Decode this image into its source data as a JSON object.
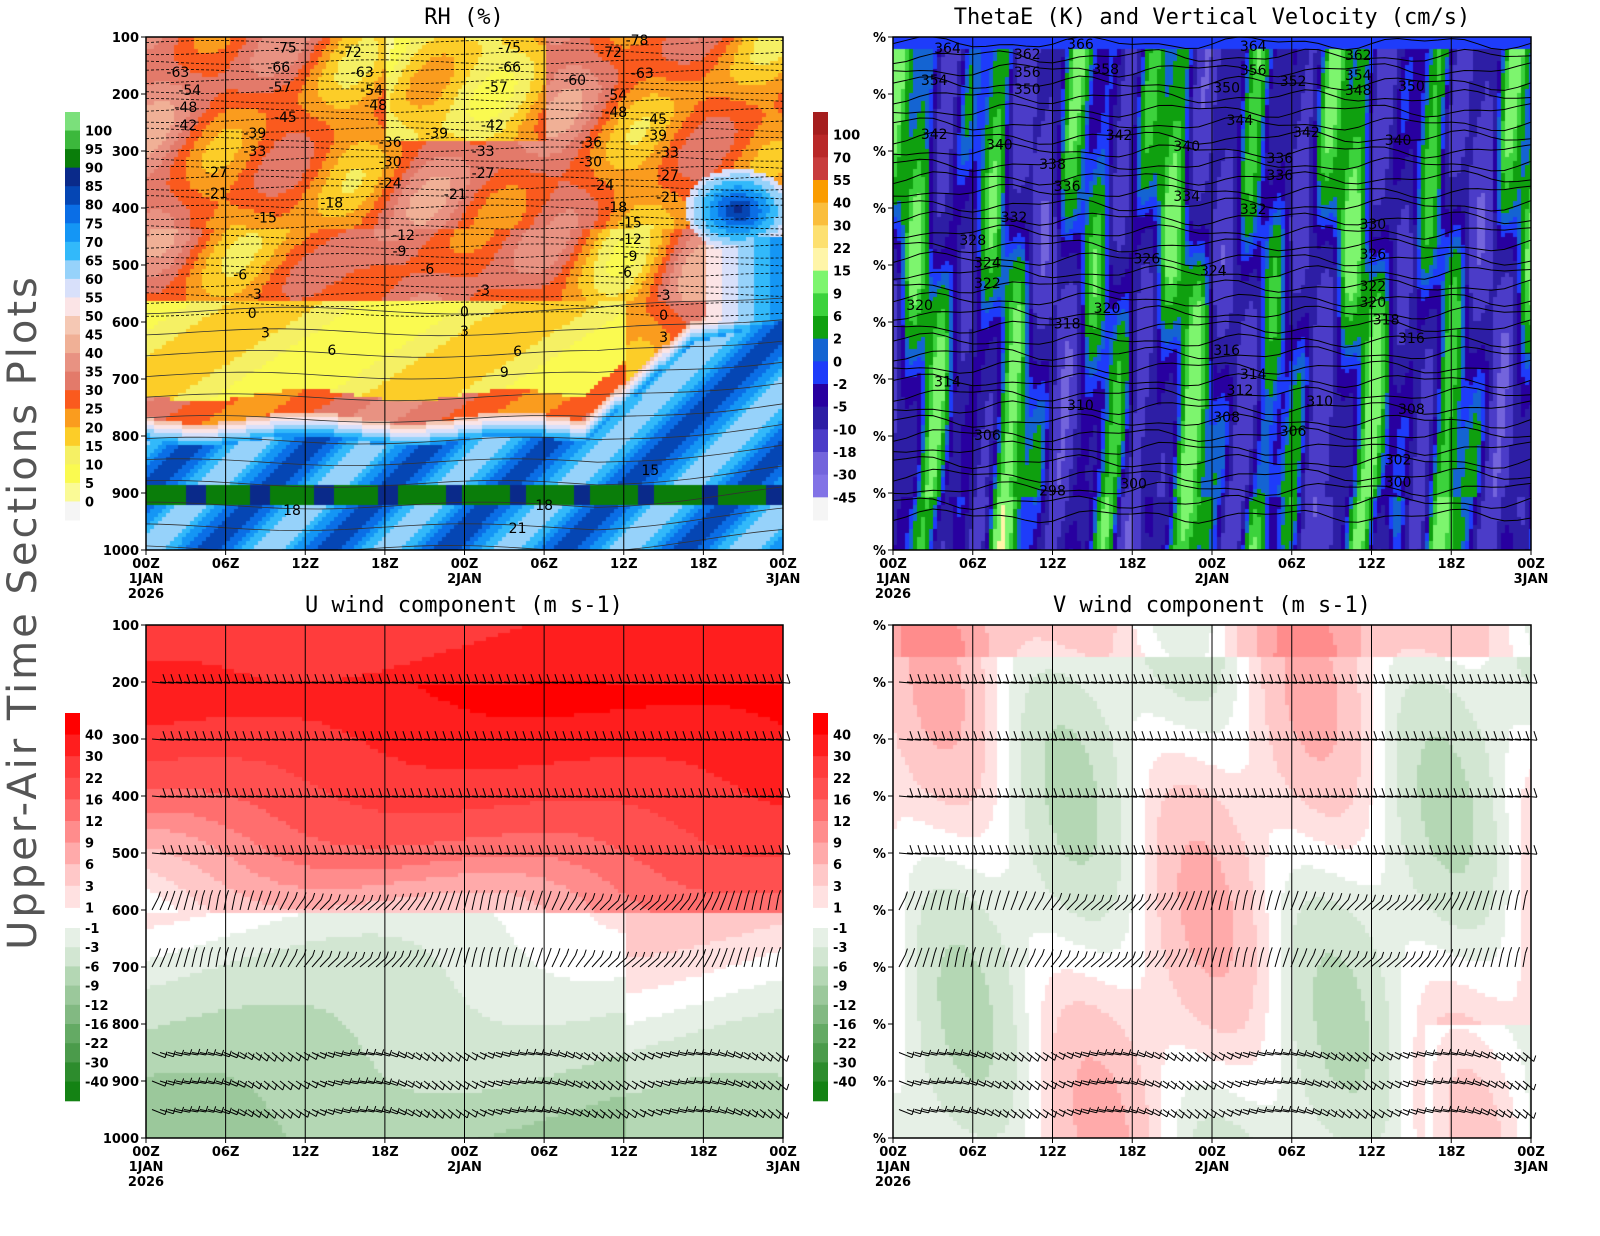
{
  "side_title": "Upper-Air Time Sections Plots",
  "x_ticks": [
    "00Z",
    "06Z",
    "12Z",
    "18Z",
    "00Z",
    "06Z",
    "12Z",
    "18Z",
    "00Z"
  ],
  "x_date_labels": [
    {
      "tick": 0,
      "lines": [
        "1JAN",
        "2026"
      ]
    },
    {
      "tick": 4,
      "lines": [
        "2JAN"
      ]
    },
    {
      "tick": 8,
      "lines": [
        "3JAN"
      ]
    }
  ],
  "chart_data": [
    {
      "id": "rh",
      "type": "heatmap",
      "title": "RH (%)",
      "x_range_hours": [
        0,
        48
      ],
      "y_range_hPa": [
        100,
        1000
      ],
      "y_ticks": [
        "100",
        "200",
        "300",
        "400",
        "500",
        "600",
        "700",
        "800",
        "900",
        "1000"
      ],
      "colorbar": {
        "labels": [
          "100",
          "95",
          "90",
          "85",
          "80",
          "75",
          "70",
          "65",
          "60",
          "55",
          "50",
          "45",
          "40",
          "35",
          "30",
          "25",
          "20",
          "15",
          "10",
          "5",
          "0"
        ],
        "colors": [
          "#7be07b",
          "#3cb83c",
          "#0a7d0a",
          "#0a2a8a",
          "#0546b4",
          "#0a6ee6",
          "#1496f5",
          "#32b9fa",
          "#96d2fa",
          "#d8e0fa",
          "#fbe4e6",
          "#f5c8b4",
          "#f0b096",
          "#e89282",
          "#e37a6a",
          "#fa5a1e",
          "#fa9c1e",
          "#fccd28",
          "#f5f064",
          "#fafa50",
          "#fafa96",
          "#f5f5f5"
        ]
      },
      "contour_labels": [
        [
          10.5,
          118,
          "-75"
        ],
        [
          15.4,
          126,
          "-72"
        ],
        [
          27.4,
          118,
          "-75"
        ],
        [
          35,
          126,
          "-72"
        ],
        [
          37,
          105,
          "-78"
        ],
        [
          2.4,
          161,
          "-63"
        ],
        [
          10,
          153,
          "-66"
        ],
        [
          16.3,
          161,
          "-63"
        ],
        [
          27.4,
          153,
          "-66"
        ],
        [
          32.3,
          175,
          "-60"
        ],
        [
          37.4,
          163,
          "-63"
        ],
        [
          3.3,
          193,
          "-54"
        ],
        [
          10.1,
          188,
          "-57"
        ],
        [
          17,
          193,
          "-54"
        ],
        [
          26.4,
          188,
          "-57"
        ],
        [
          35.4,
          202,
          "-54"
        ],
        [
          3,
          223,
          "-48"
        ],
        [
          17.3,
          219,
          "-48"
        ],
        [
          35.4,
          232,
          "-48"
        ],
        [
          10.5,
          240,
          "-45"
        ],
        [
          38.4,
          244,
          "-45"
        ],
        [
          3,
          254,
          "-42"
        ],
        [
          26.1,
          254,
          "-42"
        ],
        [
          8.2,
          268,
          "-39"
        ],
        [
          21.9,
          268,
          "-39"
        ],
        [
          38.4,
          272,
          "-39"
        ],
        [
          18.4,
          284,
          "-36"
        ],
        [
          33.5,
          284,
          "-36"
        ],
        [
          8.2,
          300,
          "-33"
        ],
        [
          25.4,
          300,
          "-33"
        ],
        [
          39.3,
          302,
          "-33"
        ],
        [
          18.4,
          318,
          "-30"
        ],
        [
          33.5,
          318,
          "-30"
        ],
        [
          5.3,
          337,
          "-27"
        ],
        [
          25.4,
          339,
          "-27"
        ],
        [
          39.3,
          342,
          "-27"
        ],
        [
          18.4,
          356,
          "-24"
        ],
        [
          34.4,
          360,
          "-24"
        ],
        [
          5.3,
          374,
          "-21"
        ],
        [
          23.3,
          375,
          "-21"
        ],
        [
          39.3,
          381,
          "-21"
        ],
        [
          14,
          390,
          "-18"
        ],
        [
          35.4,
          398,
          "-18"
        ],
        [
          9,
          417,
          "-15"
        ],
        [
          36.5,
          425,
          "-15"
        ],
        [
          19.4,
          447,
          "-12"
        ],
        [
          36.5,
          454,
          "-12"
        ],
        [
          19.1,
          475,
          "-9"
        ],
        [
          36.5,
          484,
          "-9"
        ],
        [
          7.1,
          517,
          "-6"
        ],
        [
          21.2,
          507,
          "-6"
        ],
        [
          36.1,
          512,
          "-6"
        ],
        [
          8.2,
          551,
          "-3"
        ],
        [
          25.4,
          544,
          "-3"
        ],
        [
          39,
          553,
          "-3"
        ],
        [
          8,
          584,
          "0"
        ],
        [
          24,
          582,
          "0"
        ],
        [
          39,
          588,
          "0"
        ],
        [
          9,
          618,
          "3"
        ],
        [
          24,
          616,
          "3"
        ],
        [
          39,
          626,
          "3"
        ],
        [
          14,
          649,
          "6"
        ],
        [
          28,
          651,
          "6"
        ],
        [
          27,
          688,
          "9"
        ],
        [
          38,
          860,
          "15"
        ],
        [
          11,
          930,
          "18"
        ],
        [
          30,
          921,
          "18"
        ],
        [
          28,
          961,
          "21"
        ]
      ]
    },
    {
      "id": "thetae",
      "type": "heatmap",
      "title": "ThetaE (K) and Vertical Velocity (cm/s)",
      "x_range_hours": [
        0,
        48
      ],
      "y_range_hPa": [
        100,
        1000
      ],
      "y_ticks": [
        "%",
        "%",
        "%",
        "%",
        "%",
        "%",
        "%",
        "%",
        "%",
        "%"
      ],
      "colorbar": {
        "labels": [
          "100",
          "70",
          "55",
          "40",
          "30",
          "22",
          "15",
          "9",
          "6",
          "2",
          "0",
          "-2",
          "-5",
          "-10",
          "-18",
          "-30",
          "-45"
        ],
        "colors": [
          "#a51e1e",
          "#b92828",
          "#c83c3c",
          "#fa9c00",
          "#fabe3c",
          "#fde070",
          "#fff5a8",
          "#7df56e",
          "#3cd23c",
          "#0fa00f",
          "#1464d2",
          "#1e3cfa",
          "#2800a0",
          "#2d1ea5",
          "#4b3cc8",
          "#7364dc",
          "#8273e6",
          "#f5f5f5"
        ]
      },
      "contour_labels": [
        [
          4.1,
          119,
          "364"
        ],
        [
          10.1,
          130,
          "362"
        ],
        [
          14.1,
          112,
          "366"
        ],
        [
          27.1,
          116,
          "364"
        ],
        [
          35,
          132,
          "362"
        ],
        [
          3.1,
          175,
          "354"
        ],
        [
          10.1,
          161,
          "356"
        ],
        [
          16,
          156,
          "358"
        ],
        [
          27.1,
          158,
          "356"
        ],
        [
          30.1,
          177,
          "352"
        ],
        [
          35,
          167,
          "354"
        ],
        [
          35,
          193,
          "348"
        ],
        [
          10.1,
          191,
          "350"
        ],
        [
          25.1,
          189,
          "350"
        ],
        [
          39,
          186,
          "350"
        ],
        [
          26.1,
          246,
          "344"
        ],
        [
          3.1,
          270,
          "342"
        ],
        [
          8,
          289,
          "340"
        ],
        [
          17,
          272,
          "342"
        ],
        [
          22.1,
          291,
          "340"
        ],
        [
          31.1,
          267,
          "342"
        ],
        [
          38,
          281,
          "340"
        ],
        [
          12,
          323,
          "338"
        ],
        [
          13.1,
          361,
          "336"
        ],
        [
          29.1,
          312,
          "336"
        ],
        [
          29.1,
          342,
          "336"
        ],
        [
          22.1,
          379,
          "334"
        ],
        [
          9.1,
          416,
          "332"
        ],
        [
          27.1,
          402,
          "332"
        ],
        [
          36.1,
          428,
          "330"
        ],
        [
          6,
          456,
          "328"
        ],
        [
          19.1,
          489,
          "326"
        ],
        [
          36.1,
          481,
          "326"
        ],
        [
          7.1,
          496,
          "324"
        ],
        [
          24.1,
          510,
          "324"
        ],
        [
          7.1,
          532,
          "322"
        ],
        [
          36.1,
          537,
          "322"
        ],
        [
          2,
          570,
          "320"
        ],
        [
          16.1,
          575,
          "320"
        ],
        [
          36.1,
          565,
          "320"
        ],
        [
          13.1,
          603,
          "318"
        ],
        [
          37.1,
          596,
          "318"
        ],
        [
          25.1,
          649,
          "316"
        ],
        [
          39,
          628,
          "316"
        ],
        [
          4.1,
          704,
          "314"
        ],
        [
          27.1,
          691,
          "314"
        ],
        [
          26.1,
          719,
          "312"
        ],
        [
          14.1,
          746,
          "310"
        ],
        [
          32.1,
          739,
          "310"
        ],
        [
          25.1,
          767,
          "308"
        ],
        [
          39,
          753,
          "308"
        ],
        [
          7.1,
          798,
          "306"
        ],
        [
          30.1,
          791,
          "306"
        ],
        [
          38,
          841,
          "302"
        ],
        [
          18.1,
          883,
          "300"
        ],
        [
          38,
          881,
          "300"
        ],
        [
          12,
          896,
          "298"
        ]
      ]
    },
    {
      "id": "u",
      "type": "heatmap",
      "title": "U wind component (m s-1)",
      "x_range_hours": [
        0,
        48
      ],
      "y_range_hPa": [
        100,
        1000
      ],
      "y_ticks": [
        "100",
        "200",
        "300",
        "400",
        "500",
        "600",
        "700",
        "800",
        "900",
        "1000"
      ],
      "colorbar": {
        "pos_labels": [
          "40",
          "30",
          "22",
          "16",
          "12",
          "9",
          "6",
          "3",
          "1"
        ],
        "pos_colors": [
          "#ff0000",
          "#ff1e1e",
          "#ff3c3c",
          "#ff5050",
          "#ff6e6e",
          "#ff8c8c",
          "#ffaaaa",
          "#ffc8c8",
          "#ffe1e1"
        ],
        "neg_labels": [
          "-1",
          "-3",
          "-6",
          "-9",
          "-12",
          "-16",
          "-22",
          "-30",
          "-40"
        ],
        "neg_colors": [
          "#e6f0e6",
          "#d2e6d2",
          "#b4d7b4",
          "#9bc89b",
          "#82b982",
          "#64aa64",
          "#4b9b4b",
          "#2d8c2d",
          "#148214"
        ]
      },
      "wind_barb_levels_hPa": [
        200,
        300,
        400,
        500,
        600,
        700,
        850,
        900,
        950
      ]
    },
    {
      "id": "v",
      "type": "heatmap",
      "title": "V wind component (m s-1)",
      "x_range_hours": [
        0,
        48
      ],
      "y_range_hPa": [
        100,
        1000
      ],
      "y_ticks": [
        "%",
        "%",
        "%",
        "%",
        "%",
        "%",
        "%",
        "%",
        "%",
        "%"
      ],
      "colorbar": {
        "pos_labels": [
          "40",
          "30",
          "22",
          "16",
          "12",
          "9",
          "6",
          "3",
          "1"
        ],
        "pos_colors": [
          "#ff0000",
          "#ff1e1e",
          "#ff3c3c",
          "#ff5050",
          "#ff6e6e",
          "#ff8c8c",
          "#ffaaaa",
          "#ffc8c8",
          "#ffe1e1"
        ],
        "neg_labels": [
          "-1",
          "-3",
          "-6",
          "-9",
          "-12",
          "-16",
          "-22",
          "-30",
          "-40"
        ],
        "neg_colors": [
          "#e6f0e6",
          "#d2e6d2",
          "#b4d7b4",
          "#9bc89b",
          "#82b982",
          "#64aa64",
          "#4b9b4b",
          "#2d8c2d",
          "#148214"
        ]
      },
      "wind_barb_levels_hPa": [
        200,
        300,
        400,
        500,
        600,
        700,
        850,
        900,
        950
      ]
    }
  ]
}
